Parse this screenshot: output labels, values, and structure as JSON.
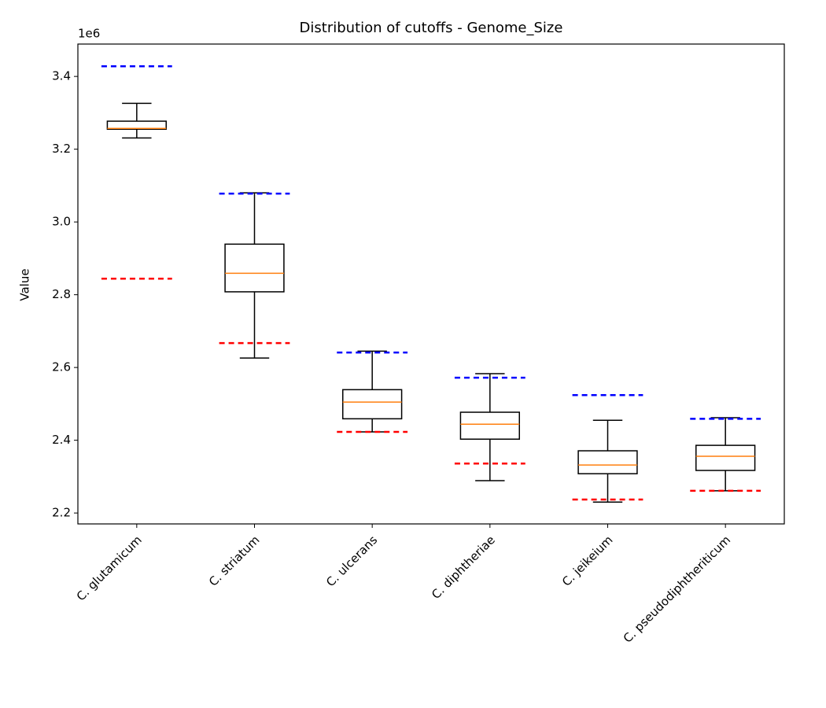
{
  "chart_data": {
    "type": "box",
    "title": "Distribution of cutoffs - Genome_Size",
    "y_label": "Value",
    "y_offset_label": "1e6",
    "categories": [
      "C. glutamicum",
      "C. striatum",
      "C. ulcerans",
      "C. diphtheriae",
      "C. jeikeium",
      "C. pseudodiphtheriticum"
    ],
    "boxes": {
      "whislo": [
        3.231,
        2.626,
        2.423,
        2.289,
        2.23,
        2.261
      ],
      "q1": [
        3.255,
        2.808,
        2.459,
        2.403,
        2.308,
        2.317
      ],
      "med": [
        3.257,
        2.859,
        2.505,
        2.444,
        2.332,
        2.356
      ],
      "q3": [
        3.277,
        2.939,
        2.539,
        2.477,
        2.371,
        2.386
      ],
      "whishi": [
        3.326,
        3.08,
        2.645,
        2.583,
        2.455,
        2.462
      ]
    },
    "box_color": "#000000",
    "median_color": "#ff7f0e",
    "upper_cutoff": {
      "color": "#0000ff",
      "values": [
        3.428,
        3.078,
        2.641,
        2.572,
        2.524,
        2.459
      ]
    },
    "lower_cutoff": {
      "color": "#ff0000",
      "values": [
        2.844,
        2.667,
        2.423,
        2.336,
        2.237,
        2.261
      ]
    },
    "ylim": [
      2.17,
      3.489
    ],
    "yticks": [
      2.2,
      2.4,
      2.6,
      2.8,
      {
        "value": 3,
        "label": "3.0"
      },
      3.2,
      3.4
    ]
  }
}
